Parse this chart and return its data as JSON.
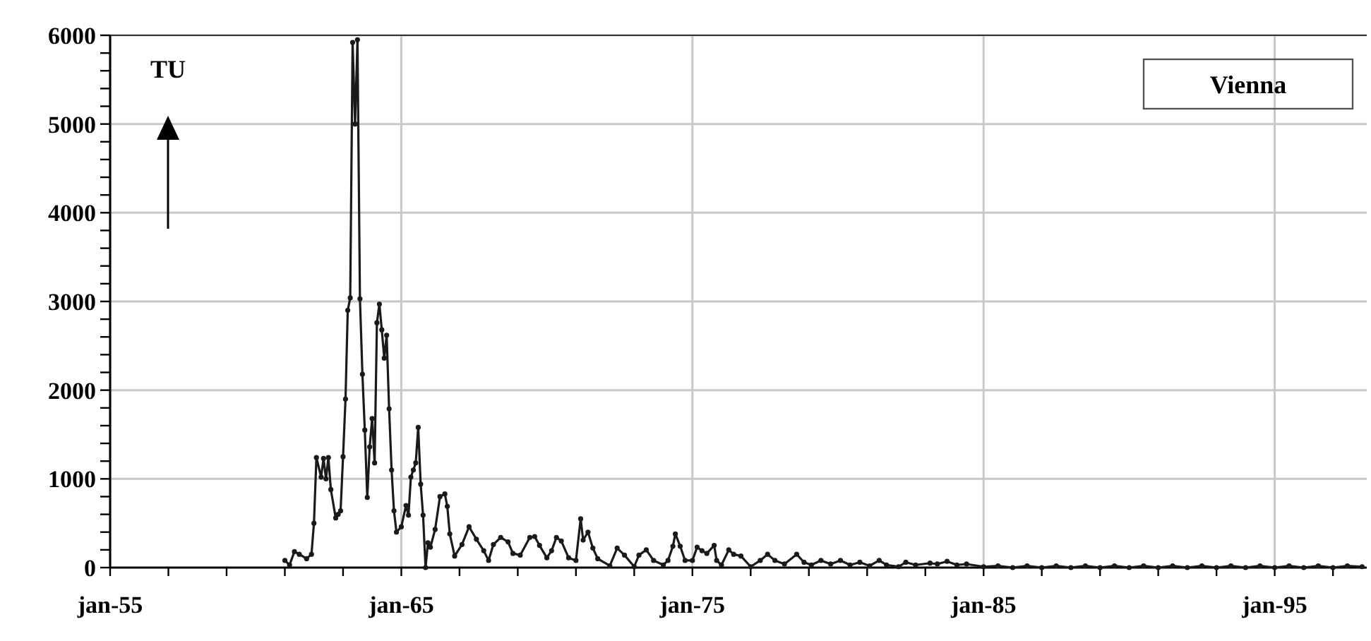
{
  "chart_data": {
    "type": "line",
    "title": "Vienna",
    "ylabel": "TU",
    "marker": "circle",
    "line_style": "solid",
    "grid": true,
    "xlim": [
      "1955-01",
      "1998-03"
    ],
    "xticks": [
      {
        "value": "1955-01",
        "label": "jan-55"
      },
      {
        "value": "1957-01",
        "label": null
      },
      {
        "value": "1959-01",
        "label": null
      },
      {
        "value": "1961-01",
        "label": null
      },
      {
        "value": "1963-01",
        "label": null
      },
      {
        "value": "1965-01",
        "label": "jan-65"
      },
      {
        "value": "1967-01",
        "label": null
      },
      {
        "value": "1969-01",
        "label": null
      },
      {
        "value": "1971-01",
        "label": null
      },
      {
        "value": "1973-01",
        "label": null
      },
      {
        "value": "1975-01",
        "label": "jan-75"
      },
      {
        "value": "1977-01",
        "label": null
      },
      {
        "value": "1979-01",
        "label": null
      },
      {
        "value": "1981-01",
        "label": null
      },
      {
        "value": "1983-01",
        "label": null
      },
      {
        "value": "1985-01",
        "label": "jan-85"
      },
      {
        "value": "1987-01",
        "label": null
      },
      {
        "value": "1989-01",
        "label": null
      },
      {
        "value": "1991-01",
        "label": null
      },
      {
        "value": "1993-01",
        "label": null
      },
      {
        "value": "1995-01",
        "label": "jan-95"
      },
      {
        "value": "1997-01",
        "label": null
      }
    ],
    "ylim": [
      0,
      6000
    ],
    "yticks": [
      0,
      {
        "value": 200,
        "label": null
      },
      {
        "value": 400,
        "label": null
      },
      {
        "value": 600,
        "label": null
      },
      {
        "value": 800,
        "label": null
      },
      1000,
      {
        "value": 1200,
        "label": null
      },
      {
        "value": 1400,
        "label": null
      },
      {
        "value": 1600,
        "label": null
      },
      {
        "value": 1800,
        "label": null
      },
      2000,
      {
        "value": 2200,
        "label": null
      },
      {
        "value": 2400,
        "label": null
      },
      {
        "value": 2600,
        "label": null
      },
      {
        "value": 2800,
        "label": null
      },
      3000,
      {
        "value": 3200,
        "label": null
      },
      {
        "value": 3400,
        "label": null
      },
      {
        "value": 3600,
        "label": null
      },
      {
        "value": 3800,
        "label": null
      },
      4000,
      {
        "value": 4200,
        "label": null
      },
      {
        "value": 4400,
        "label": null
      },
      {
        "value": 4600,
        "label": null
      },
      {
        "value": 4800,
        "label": null
      },
      5000,
      {
        "value": 5200,
        "label": null
      },
      {
        "value": 5400,
        "label": null
      },
      {
        "value": 5600,
        "label": null
      },
      {
        "value": 5800,
        "label": null
      },
      6000
    ],
    "series": [
      {
        "color": "#1a1a1a",
        "x": [
          "1961-01",
          "1961-03",
          "1961-05",
          "1961-07",
          "1961-10",
          "1961-12",
          "1962-01",
          "1962-02",
          "1962-04",
          "1962-05",
          "1962-06",
          "1962-07",
          "1962-08",
          "1962-10",
          "1962-11",
          "1962-12",
          "1963-01",
          "1963-02",
          "1963-03",
          "1963-04",
          "1963-05",
          "1963-06",
          "1963-07",
          "1963-08",
          "1963-09",
          "1963-10",
          "1963-11",
          "1963-12",
          "1964-01",
          "1964-02",
          "1964-03",
          "1964-04",
          "1964-05",
          "1964-06",
          "1964-07",
          "1964-08",
          "1964-09",
          "1964-10",
          "1964-11",
          "1965-01",
          "1965-03",
          "1965-04",
          "1965-05",
          "1965-06",
          "1965-07",
          "1965-08",
          "1965-09",
          "1965-10",
          "1965-11",
          "1965-12",
          "1966-01",
          "1966-03",
          "1966-05",
          "1966-07",
          "1966-08",
          "1966-09",
          "1966-11",
          "1967-02",
          "1967-05",
          "1967-08",
          "1967-11",
          "1968-01",
          "1968-03",
          "1968-06",
          "1968-09",
          "1968-11",
          "1969-02",
          "1969-06",
          "1969-08",
          "1969-10",
          "1970-01",
          "1970-03",
          "1970-05",
          "1970-07",
          "1970-10",
          "1971-01",
          "1971-03",
          "1971-04",
          "1971-06",
          "1971-08",
          "1971-10",
          "1972-03",
          "1972-06",
          "1972-09",
          "1973-01",
          "1973-03",
          "1973-06",
          "1973-09",
          "1974-01",
          "1974-03",
          "1974-05",
          "1974-06",
          "1974-08",
          "1974-10",
          "1975-01",
          "1975-03",
          "1975-05",
          "1975-07",
          "1975-10",
          "1975-11",
          "1976-01",
          "1976-04",
          "1976-06",
          "1976-09",
          "1977-01",
          "1977-05",
          "1977-08",
          "1977-11",
          "1978-03",
          "1978-08",
          "1978-11",
          "1979-02",
          "1979-06",
          "1979-10",
          "1980-02",
          "1980-06",
          "1980-10",
          "1981-02",
          "1981-06",
          "1981-09",
          "1982-02",
          "1982-05",
          "1982-09",
          "1983-03",
          "1983-06",
          "1983-10",
          "1984-02",
          "1984-06",
          "1985-01",
          "1985-07",
          "1986-01",
          "1986-07",
          "1987-01",
          "1987-07",
          "1988-01",
          "1988-07",
          "1989-01",
          "1989-07",
          "1990-01",
          "1990-07",
          "1991-01",
          "1991-07",
          "1992-01",
          "1992-07",
          "1993-01",
          "1993-07",
          "1994-01",
          "1994-07",
          "1995-01",
          "1995-07",
          "1996-01",
          "1996-07",
          "1997-01",
          "1997-07",
          "1998-01"
        ],
        "values": [
          80,
          30,
          180,
          150,
          100,
          150,
          500,
          1240,
          1020,
          1230,
          1000,
          1240,
          880,
          560,
          600,
          640,
          1250,
          1900,
          2900,
          3040,
          5920,
          5000,
          5950,
          3030,
          2180,
          1550,
          790,
          1360,
          1680,
          1180,
          2760,
          2970,
          2680,
          2360,
          2620,
          1790,
          1100,
          640,
          400,
          460,
          700,
          590,
          1020,
          1100,
          1180,
          1580,
          940,
          590,
          0,
          280,
          230,
          430,
          800,
          830,
          690,
          380,
          130,
          260,
          460,
          320,
          190,
          80,
          260,
          340,
          290,
          160,
          140,
          340,
          350,
          250,
          110,
          190,
          340,
          300,
          110,
          80,
          550,
          310,
          400,
          220,
          100,
          20,
          220,
          140,
          10,
          140,
          200,
          80,
          30,
          80,
          240,
          380,
          240,
          80,
          80,
          230,
          190,
          160,
          250,
          80,
          30,
          200,
          150,
          130,
          10,
          80,
          150,
          80,
          40,
          150,
          60,
          30,
          80,
          40,
          80,
          30,
          60,
          20,
          80,
          30,
          10,
          60,
          30,
          50,
          40,
          70,
          30,
          40,
          10,
          20,
          0,
          20,
          0,
          20,
          0,
          20,
          0,
          20,
          0,
          20,
          0,
          20,
          0,
          20,
          0,
          20,
          0,
          20,
          0,
          20,
          0,
          20,
          0,
          20,
          10
        ]
      }
    ]
  }
}
